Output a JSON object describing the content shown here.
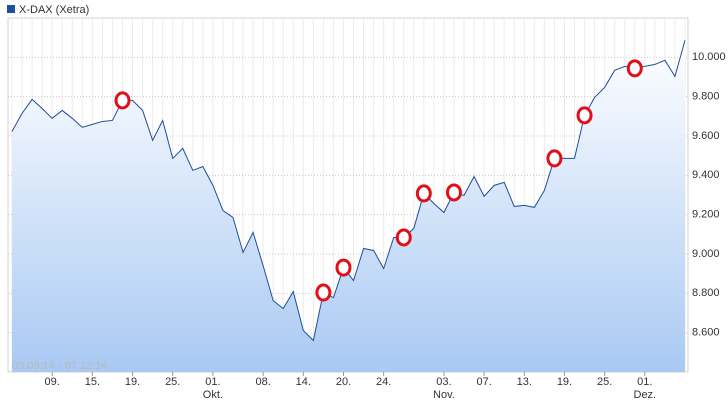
{
  "chart_data": {
    "type": "line",
    "date_range": "03.09.14 - 07.12.14",
    "categories": [
      null,
      null,
      null,
      null,
      "09.",
      null,
      null,
      null,
      "15.",
      null,
      null,
      null,
      "19.",
      null,
      null,
      null,
      "25.",
      null,
      null,
      null,
      "01.",
      null,
      null,
      null,
      null,
      "08.",
      null,
      null,
      null,
      "14.",
      null,
      null,
      null,
      "20.",
      null,
      null,
      null,
      "24.",
      null,
      null,
      null,
      null,
      null,
      "03.",
      null,
      null,
      null,
      "07.",
      null,
      null,
      null,
      "13.",
      null,
      null,
      null,
      "19.",
      null,
      null,
      null,
      "25.",
      null,
      null,
      null,
      "01.",
      null,
      null,
      null,
      null
    ],
    "months": [
      null,
      null,
      null,
      null,
      null,
      null,
      null,
      null,
      null,
      null,
      null,
      null,
      null,
      null,
      null,
      null,
      null,
      null,
      null,
      null,
      "Okt.",
      null,
      null,
      null,
      null,
      null,
      null,
      null,
      null,
      null,
      null,
      null,
      null,
      null,
      null,
      null,
      null,
      null,
      null,
      null,
      null,
      null,
      null,
      "Nov.",
      null,
      null,
      null,
      null,
      null,
      null,
      null,
      null,
      null,
      null,
      null,
      null,
      null,
      null,
      null,
      null,
      null,
      null,
      null,
      "Dez.",
      null,
      null,
      null,
      null
    ],
    "series": [
      {
        "name": "X-DAX (Xetra)",
        "color": "#1f4e9c",
        "values": [
          9623,
          9715,
          9786,
          9740,
          9690,
          9730,
          9690,
          9644,
          9659,
          9674,
          9679,
          9781,
          9781,
          9730,
          9578,
          9679,
          9486,
          9537,
          9425,
          9445,
          9349,
          9221,
          9186,
          9008,
          9110,
          8941,
          8763,
          8723,
          8809,
          8611,
          8560,
          8804,
          8778,
          8931,
          8865,
          9028,
          9018,
          8926,
          9084,
          9084,
          9130,
          9308,
          9257,
          9211,
          9313,
          9298,
          9394,
          9293,
          9349,
          9364,
          9242,
          9247,
          9237,
          9323,
          9486,
          9486,
          9486,
          9705,
          9796,
          9847,
          9934,
          9954,
          9944,
          9954,
          9964,
          9985,
          9903,
          10087
        ]
      }
    ],
    "highlight_indices": [
      11,
      31,
      33,
      39,
      41,
      44,
      54,
      57,
      62
    ],
    "highlight_color": "#e0101a",
    "ylim": [
      8400,
      10200
    ],
    "yticks": [
      {
        "value": 8600,
        "label": "8.600"
      },
      {
        "value": 8800,
        "label": "8.800"
      },
      {
        "value": 9000,
        "label": "9.000"
      },
      {
        "value": 9200,
        "label": "9.200"
      },
      {
        "value": 9400,
        "label": "9.400"
      },
      {
        "value": 9600,
        "label": "9.600"
      },
      {
        "value": 9800,
        "label": "9.800"
      },
      {
        "value": 10000,
        "label": "10.000"
      }
    ],
    "grid": true
  }
}
